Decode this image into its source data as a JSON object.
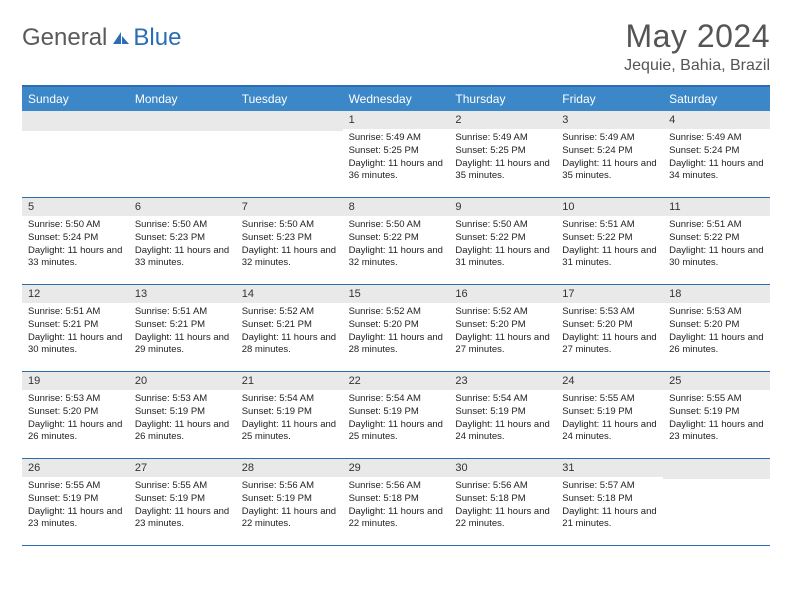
{
  "logo": {
    "general": "General",
    "blue": "Blue"
  },
  "title": "May 2024",
  "location": "Jequie, Bahia, Brazil",
  "colors": {
    "header_bg": "#3b87c8",
    "header_border": "#2a6db5",
    "strip_bg": "#e9e9e9",
    "text_dark": "#222222",
    "text_mid": "#555555"
  },
  "weekdays": [
    "Sunday",
    "Monday",
    "Tuesday",
    "Wednesday",
    "Thursday",
    "Friday",
    "Saturday"
  ],
  "weeks": [
    [
      {
        "blank": true
      },
      {
        "blank": true
      },
      {
        "blank": true
      },
      {
        "num": "1",
        "sunrise": "5:49 AM",
        "sunset": "5:25 PM",
        "daylight": "11 hours and 36 minutes."
      },
      {
        "num": "2",
        "sunrise": "5:49 AM",
        "sunset": "5:25 PM",
        "daylight": "11 hours and 35 minutes."
      },
      {
        "num": "3",
        "sunrise": "5:49 AM",
        "sunset": "5:24 PM",
        "daylight": "11 hours and 35 minutes."
      },
      {
        "num": "4",
        "sunrise": "5:49 AM",
        "sunset": "5:24 PM",
        "daylight": "11 hours and 34 minutes."
      }
    ],
    [
      {
        "num": "5",
        "sunrise": "5:50 AM",
        "sunset": "5:24 PM",
        "daylight": "11 hours and 33 minutes."
      },
      {
        "num": "6",
        "sunrise": "5:50 AM",
        "sunset": "5:23 PM",
        "daylight": "11 hours and 33 minutes."
      },
      {
        "num": "7",
        "sunrise": "5:50 AM",
        "sunset": "5:23 PM",
        "daylight": "11 hours and 32 minutes."
      },
      {
        "num": "8",
        "sunrise": "5:50 AM",
        "sunset": "5:22 PM",
        "daylight": "11 hours and 32 minutes."
      },
      {
        "num": "9",
        "sunrise": "5:50 AM",
        "sunset": "5:22 PM",
        "daylight": "11 hours and 31 minutes."
      },
      {
        "num": "10",
        "sunrise": "5:51 AM",
        "sunset": "5:22 PM",
        "daylight": "11 hours and 31 minutes."
      },
      {
        "num": "11",
        "sunrise": "5:51 AM",
        "sunset": "5:22 PM",
        "daylight": "11 hours and 30 minutes."
      }
    ],
    [
      {
        "num": "12",
        "sunrise": "5:51 AM",
        "sunset": "5:21 PM",
        "daylight": "11 hours and 30 minutes."
      },
      {
        "num": "13",
        "sunrise": "5:51 AM",
        "sunset": "5:21 PM",
        "daylight": "11 hours and 29 minutes."
      },
      {
        "num": "14",
        "sunrise": "5:52 AM",
        "sunset": "5:21 PM",
        "daylight": "11 hours and 28 minutes."
      },
      {
        "num": "15",
        "sunrise": "5:52 AM",
        "sunset": "5:20 PM",
        "daylight": "11 hours and 28 minutes."
      },
      {
        "num": "16",
        "sunrise": "5:52 AM",
        "sunset": "5:20 PM",
        "daylight": "11 hours and 27 minutes."
      },
      {
        "num": "17",
        "sunrise": "5:53 AM",
        "sunset": "5:20 PM",
        "daylight": "11 hours and 27 minutes."
      },
      {
        "num": "18",
        "sunrise": "5:53 AM",
        "sunset": "5:20 PM",
        "daylight": "11 hours and 26 minutes."
      }
    ],
    [
      {
        "num": "19",
        "sunrise": "5:53 AM",
        "sunset": "5:20 PM",
        "daylight": "11 hours and 26 minutes."
      },
      {
        "num": "20",
        "sunrise": "5:53 AM",
        "sunset": "5:19 PM",
        "daylight": "11 hours and 26 minutes."
      },
      {
        "num": "21",
        "sunrise": "5:54 AM",
        "sunset": "5:19 PM",
        "daylight": "11 hours and 25 minutes."
      },
      {
        "num": "22",
        "sunrise": "5:54 AM",
        "sunset": "5:19 PM",
        "daylight": "11 hours and 25 minutes."
      },
      {
        "num": "23",
        "sunrise": "5:54 AM",
        "sunset": "5:19 PM",
        "daylight": "11 hours and 24 minutes."
      },
      {
        "num": "24",
        "sunrise": "5:55 AM",
        "sunset": "5:19 PM",
        "daylight": "11 hours and 24 minutes."
      },
      {
        "num": "25",
        "sunrise": "5:55 AM",
        "sunset": "5:19 PM",
        "daylight": "11 hours and 23 minutes."
      }
    ],
    [
      {
        "num": "26",
        "sunrise": "5:55 AM",
        "sunset": "5:19 PM",
        "daylight": "11 hours and 23 minutes."
      },
      {
        "num": "27",
        "sunrise": "5:55 AM",
        "sunset": "5:19 PM",
        "daylight": "11 hours and 23 minutes."
      },
      {
        "num": "28",
        "sunrise": "5:56 AM",
        "sunset": "5:19 PM",
        "daylight": "11 hours and 22 minutes."
      },
      {
        "num": "29",
        "sunrise": "5:56 AM",
        "sunset": "5:18 PM",
        "daylight": "11 hours and 22 minutes."
      },
      {
        "num": "30",
        "sunrise": "5:56 AM",
        "sunset": "5:18 PM",
        "daylight": "11 hours and 22 minutes."
      },
      {
        "num": "31",
        "sunrise": "5:57 AM",
        "sunset": "5:18 PM",
        "daylight": "11 hours and 21 minutes."
      },
      {
        "blank": true
      }
    ]
  ]
}
